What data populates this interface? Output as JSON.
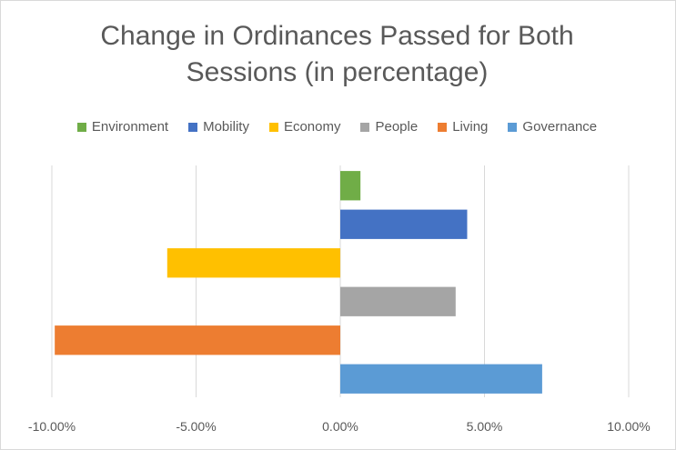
{
  "chart_data": {
    "type": "bar",
    "orientation": "horizontal",
    "title_line1": "Change in Ordinances Passed for Both",
    "title_line2": "Sessions (in percentage)",
    "xlim": [
      -0.1,
      0.1
    ],
    "ticks": [
      -0.1,
      -0.05,
      0.0,
      0.05,
      0.1
    ],
    "tick_labels": [
      "-10.00%",
      "-5.00%",
      "0.00%",
      "5.00%",
      "10.00%"
    ],
    "grid": "vertical",
    "legend_position": "top",
    "series": [
      {
        "name": "Environment",
        "value": 0.007,
        "color": "#70ad47"
      },
      {
        "name": "Mobility",
        "value": 0.044,
        "color": "#4472c4"
      },
      {
        "name": "Economy",
        "value": -0.06,
        "color": "#ffc000"
      },
      {
        "name": "People",
        "value": 0.04,
        "color": "#a5a5a5"
      },
      {
        "name": "Living",
        "value": -0.099,
        "color": "#ed7d31"
      },
      {
        "name": "Governance",
        "value": 0.07,
        "color": "#5b9bd5"
      }
    ]
  }
}
